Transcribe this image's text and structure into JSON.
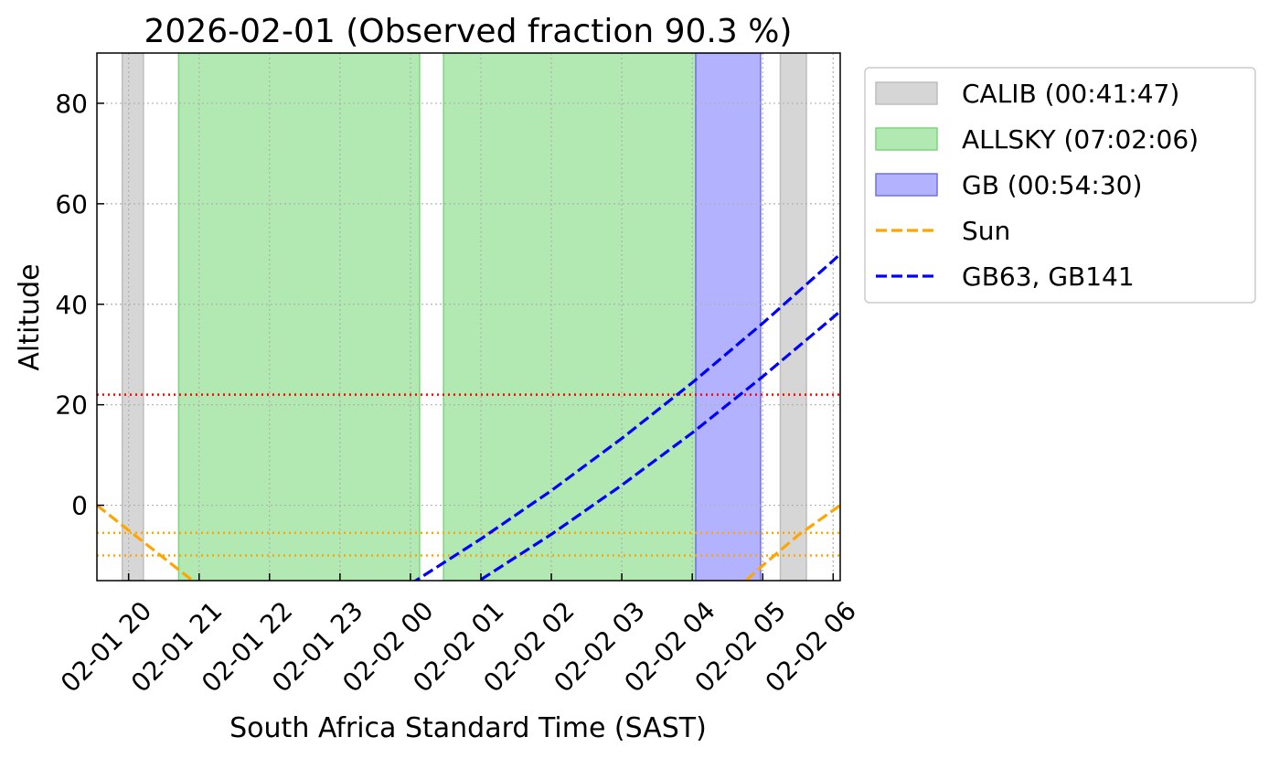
{
  "chart_data": {
    "type": "line",
    "title": "2026-02-01 (Observed fraction 90.3 %)",
    "xlabel": "South Africa Standard Time (SAST)",
    "ylabel": "Altitude",
    "xlim": [
      19.55,
      30.1
    ],
    "ylim": [
      -15,
      90
    ],
    "xticks": [
      {
        "value": 20,
        "label": "02-01 20"
      },
      {
        "value": 21,
        "label": "02-01 21"
      },
      {
        "value": 22,
        "label": "02-01 22"
      },
      {
        "value": 23,
        "label": "02-01 23"
      },
      {
        "value": 24,
        "label": "02-02 00"
      },
      {
        "value": 25,
        "label": "02-02 01"
      },
      {
        "value": 26,
        "label": "02-02 02"
      },
      {
        "value": 27,
        "label": "02-02 03"
      },
      {
        "value": 28,
        "label": "02-02 04"
      },
      {
        "value": 29,
        "label": "02-02 05"
      },
      {
        "value": 30,
        "label": "02-02 06"
      }
    ],
    "yticks": [
      0,
      20,
      40,
      60,
      80
    ],
    "grid": true,
    "legend": "outside-upper-right",
    "spans": [
      {
        "name": "CALIB (00:41:47)",
        "color": "#d6d6d6",
        "edge": "#bdbdbd",
        "ranges": [
          [
            19.91,
            20.21
          ],
          [
            29.25,
            29.62
          ]
        ]
      },
      {
        "name": "ALLSKY (07:02:06)",
        "color": "#b2e8b2",
        "edge": "#7fd47f",
        "ranges": [
          [
            20.71,
            24.13
          ],
          [
            24.47,
            28.05
          ]
        ]
      },
      {
        "name": "GB (00:54:30)",
        "color": "#b2b2ff",
        "edge": "#7070e8",
        "ranges": [
          [
            28.05,
            28.97
          ]
        ]
      }
    ],
    "hlines": [
      {
        "value": 22,
        "color": "red"
      },
      {
        "value": -5.5,
        "color": "orange"
      },
      {
        "value": -10,
        "color": "orange"
      }
    ],
    "series": [
      {
        "name": "Sun",
        "color": "orange",
        "x": [
          19.55,
          20.0,
          20.5,
          21.0,
          null,
          28.6,
          29.0,
          29.5,
          30.1
        ],
        "values": [
          0,
          -5,
          -10.5,
          -16,
          null,
          -17,
          -12,
          -6,
          0
        ]
      },
      {
        "name": "GB63, GB141",
        "color": "blue",
        "x": [
          24,
          25,
          26,
          27,
          28,
          29,
          30,
          30.1,
          null,
          25,
          26,
          27,
          28,
          29,
          30,
          30.1
        ],
        "values": [
          -15.7,
          -6.7,
          2.9,
          13.3,
          24.4,
          36.2,
          48.7,
          50.0,
          null,
          -14.8,
          -5.8,
          4.0,
          14.4,
          25.6,
          37.4,
          38.6
        ]
      }
    ]
  }
}
